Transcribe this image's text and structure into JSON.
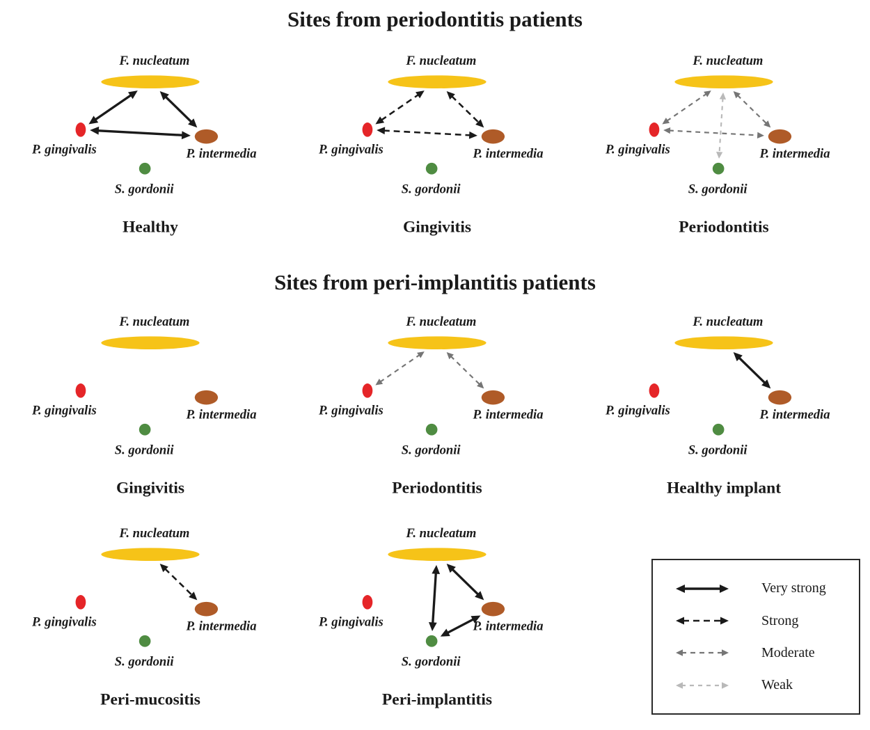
{
  "sections": [
    {
      "title": "Sites from periodontitis patients"
    },
    {
      "title": "Sites from peri-implantitis patients"
    }
  ],
  "species": {
    "f_nucleatum": "F. nucleatum",
    "p_gingivalis": "P. gingivalis",
    "p_intermedia": "P. intermedia",
    "s_gordonii": "S. gordonii"
  },
  "colors": {
    "f_nucleatum": "#F6C318",
    "p_gingivalis": "#E52528",
    "p_intermedia": "#AF5B28",
    "s_gordonii": "#4F8C42",
    "very_strong": "#1A1A1A",
    "strong": "#1A1A1A",
    "moderate": "#757575",
    "weak": "#B9B9B9"
  },
  "panels": [
    {
      "id": "healthy",
      "title": "Healthy",
      "edges": [
        {
          "from": "p_gingivalis",
          "to": "f_nucleatum",
          "strength": "very_strong"
        },
        {
          "from": "f_nucleatum",
          "to": "p_intermedia",
          "strength": "very_strong"
        },
        {
          "from": "p_gingivalis",
          "to": "p_intermedia",
          "strength": "very_strong"
        }
      ]
    },
    {
      "id": "gingivitis",
      "title": "Gingivitis",
      "edges": [
        {
          "from": "p_gingivalis",
          "to": "f_nucleatum",
          "strength": "strong"
        },
        {
          "from": "f_nucleatum",
          "to": "p_intermedia",
          "strength": "strong"
        },
        {
          "from": "p_gingivalis",
          "to": "p_intermedia",
          "strength": "strong"
        }
      ]
    },
    {
      "id": "periodontitis",
      "title": "Periodontitis",
      "edges": [
        {
          "from": "p_gingivalis",
          "to": "f_nucleatum",
          "strength": "moderate"
        },
        {
          "from": "f_nucleatum",
          "to": "p_intermedia",
          "strength": "moderate"
        },
        {
          "from": "p_gingivalis",
          "to": "p_intermedia",
          "strength": "moderate"
        },
        {
          "from": "f_nucleatum",
          "to": "s_gordonii",
          "strength": "weak"
        }
      ]
    },
    {
      "id": "gingivitis-implant",
      "title": "Gingivitis",
      "edges": []
    },
    {
      "id": "periodontitis-implant",
      "title": "Periodontitis",
      "edges": [
        {
          "from": "p_gingivalis",
          "to": "f_nucleatum",
          "strength": "moderate"
        },
        {
          "from": "f_nucleatum",
          "to": "p_intermedia",
          "strength": "moderate"
        }
      ]
    },
    {
      "id": "healthy-implant",
      "title": "Healthy implant",
      "edges": [
        {
          "from": "f_nucleatum",
          "to": "p_intermedia",
          "strength": "very_strong"
        }
      ]
    },
    {
      "id": "peri-mucositis",
      "title": "Peri-mucositis",
      "edges": [
        {
          "from": "f_nucleatum",
          "to": "p_intermedia",
          "strength": "strong"
        }
      ]
    },
    {
      "id": "peri-implantitis",
      "title": "Peri-implantitis",
      "edges": [
        {
          "from": "f_nucleatum",
          "to": "s_gordonii",
          "strength": "very_strong"
        },
        {
          "from": "f_nucleatum",
          "to": "p_intermedia",
          "strength": "very_strong"
        },
        {
          "from": "p_intermedia",
          "to": "s_gordonii",
          "strength": "very_strong"
        }
      ]
    }
  ],
  "legend": {
    "items": [
      {
        "label": "Very strong",
        "strength": "very_strong"
      },
      {
        "label": "Strong",
        "strength": "strong"
      },
      {
        "label": "Moderate",
        "strength": "moderate"
      },
      {
        "label": "Weak",
        "strength": "weak"
      }
    ]
  }
}
